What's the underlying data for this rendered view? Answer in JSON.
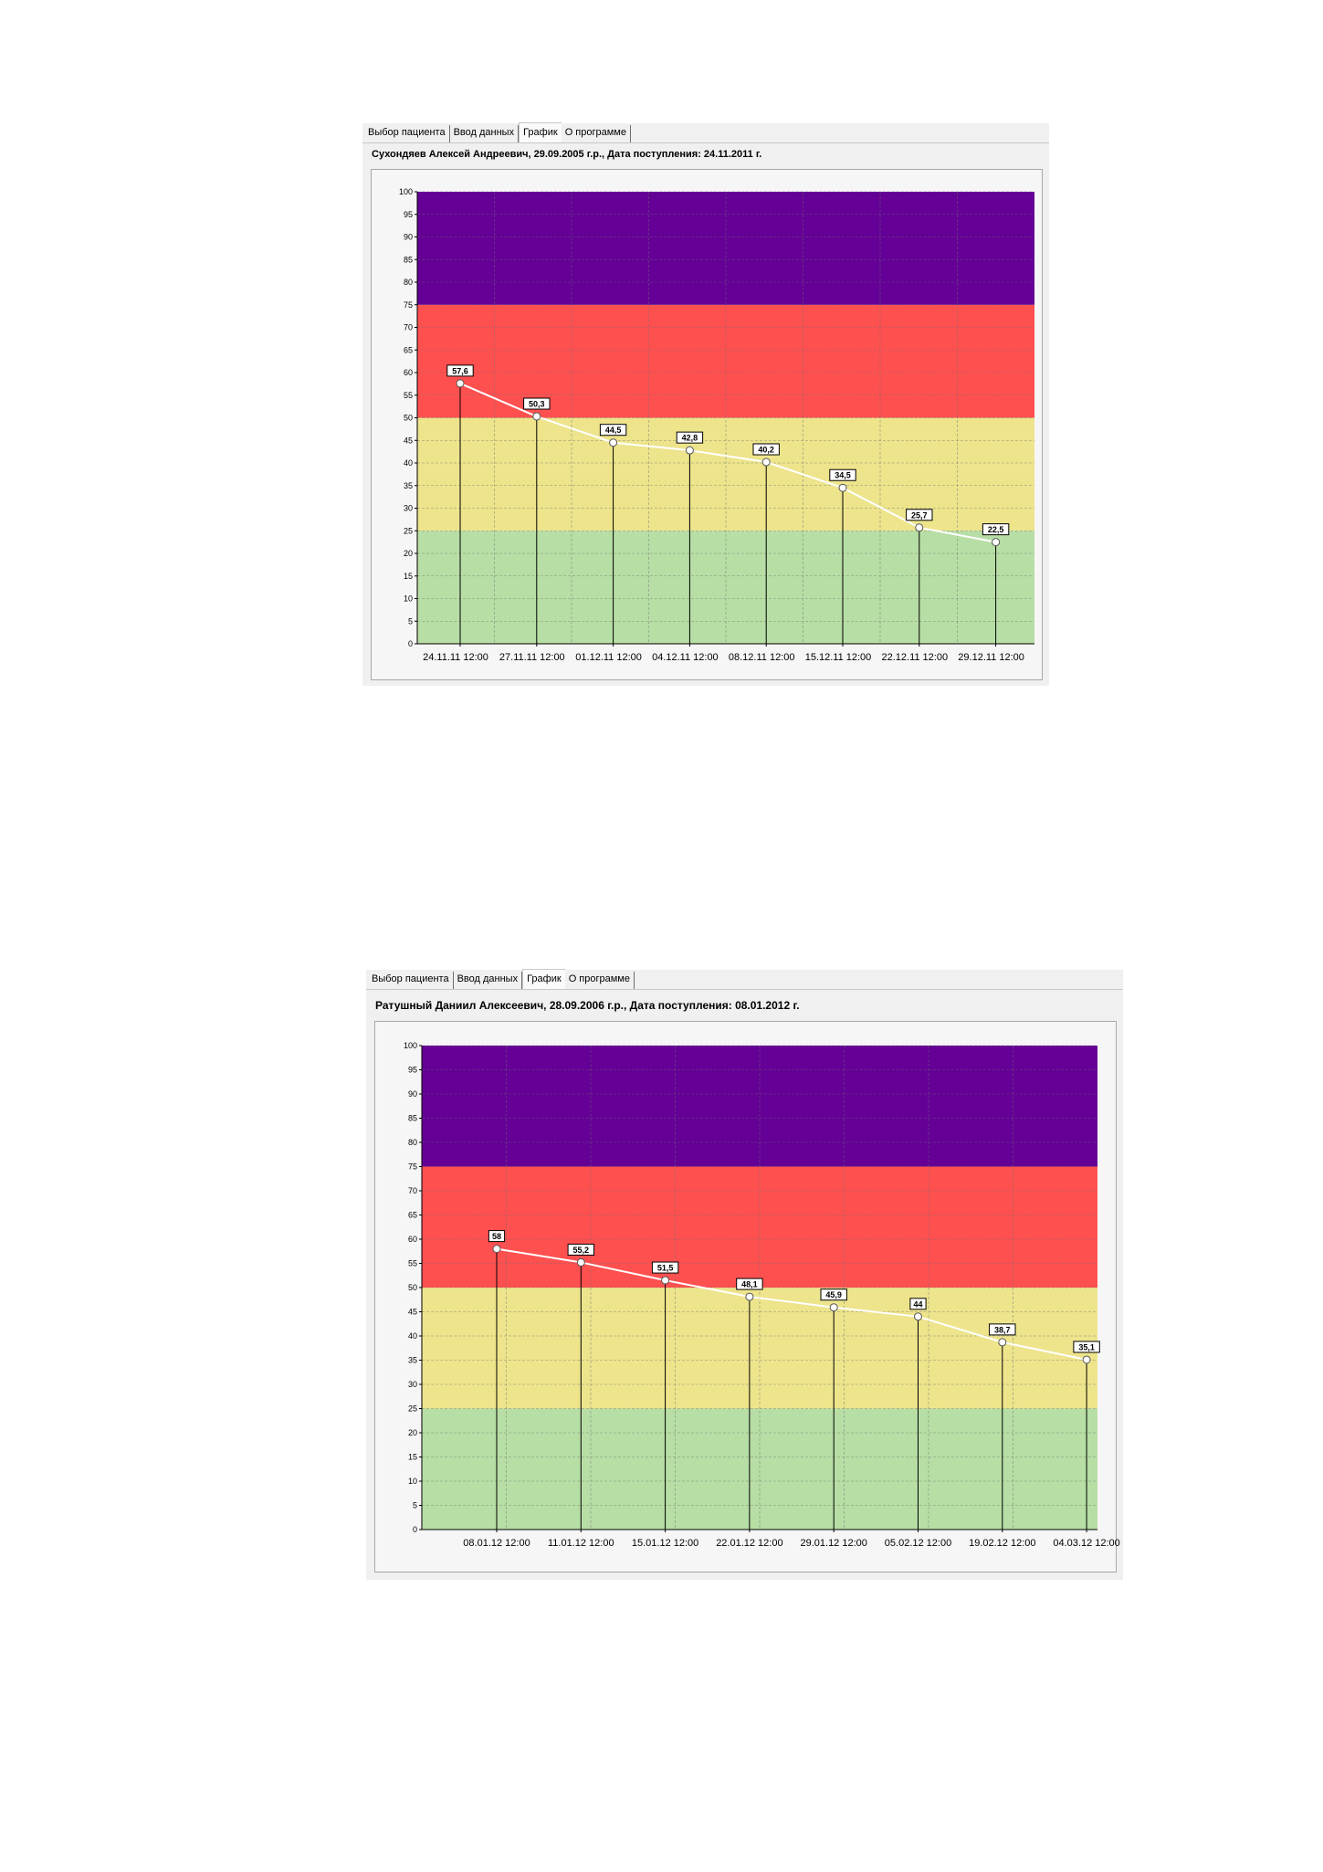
{
  "tabs": [
    "Выбор пациента",
    "Ввод данных",
    "График",
    "О программе"
  ],
  "active_tab": 2,
  "colors": {
    "zone_high": "#640096",
    "zone_warn": "#ff5050",
    "zone_mid": "#ede48c",
    "zone_low": "#b7dea5",
    "line": "#ffffff"
  },
  "screens": [
    {
      "patient_line": "Сухондяев Алексей  Андреевич, 29.09.2005 г.р., Дата поступления: 24.11.2011 г.",
      "chart_data": {
        "type": "line",
        "ylim": [
          0,
          100
        ],
        "y_ticks": [
          "0",
          "5",
          "10",
          "15",
          "20",
          "25",
          "30",
          "35",
          "40",
          "45",
          "50",
          "55",
          "60",
          "65",
          "70",
          "75",
          "80",
          "85",
          "90",
          "95",
          "100"
        ],
        "bands": [
          {
            "from": 0,
            "to": 25,
            "color": "#b7dea5"
          },
          {
            "from": 25,
            "to": 50,
            "color": "#ede48c"
          },
          {
            "from": 50,
            "to": 75,
            "color": "#ff5050"
          },
          {
            "from": 75,
            "to": 100,
            "color": "#640096"
          }
        ],
        "x": [
          "24.11.11 12:00",
          "27.11.11 12:00",
          "01.12.11 12:00",
          "04.12.11 12:00",
          "08.12.11 12:00",
          "15.12.11 12:00",
          "22.12.11 12:00",
          "29.12.11 12:00"
        ],
        "values": [
          57.6,
          50.3,
          44.5,
          42.8,
          40.2,
          34.5,
          25.7,
          22.5
        ],
        "labels": [
          "57,6",
          "50,3",
          "44,5",
          "42,8",
          "40,2",
          "34,5",
          "25,7",
          "22,5"
        ],
        "grid": true
      }
    },
    {
      "patient_line": "Ратушный Даниил Алексеевич, 28.09.2006 г.р., Дата поступления: 08.01.2012 г.",
      "chart_data": {
        "type": "line",
        "ylim": [
          0,
          100
        ],
        "y_ticks": [
          "0",
          "5",
          "10",
          "15",
          "20",
          "25",
          "30",
          "35",
          "40",
          "45",
          "50",
          "55",
          "60",
          "65",
          "70",
          "75",
          "80",
          "85",
          "90",
          "95",
          "100"
        ],
        "bands": [
          {
            "from": 0,
            "to": 25,
            "color": "#b7dea5"
          },
          {
            "from": 25,
            "to": 50,
            "color": "#ede48c"
          },
          {
            "from": 50,
            "to": 75,
            "color": "#ff5050"
          },
          {
            "from": 75,
            "to": 100,
            "color": "#640096"
          }
        ],
        "x": [
          "08.01.12 12:00",
          "11.01.12 12:00",
          "15.01.12 12:00",
          "22.01.12 12:00",
          "29.01.12 12:00",
          "05.02.12 12:00",
          "19.02.12 12:00",
          "04.03.12 12:00"
        ],
        "values": [
          58,
          55.2,
          51.5,
          48.1,
          45.9,
          44,
          38.7,
          35.1
        ],
        "labels": [
          "58",
          "55,2",
          "51,5",
          "48,1",
          "45,9",
          "44",
          "38,7",
          "35,1"
        ],
        "grid": true
      }
    }
  ]
}
